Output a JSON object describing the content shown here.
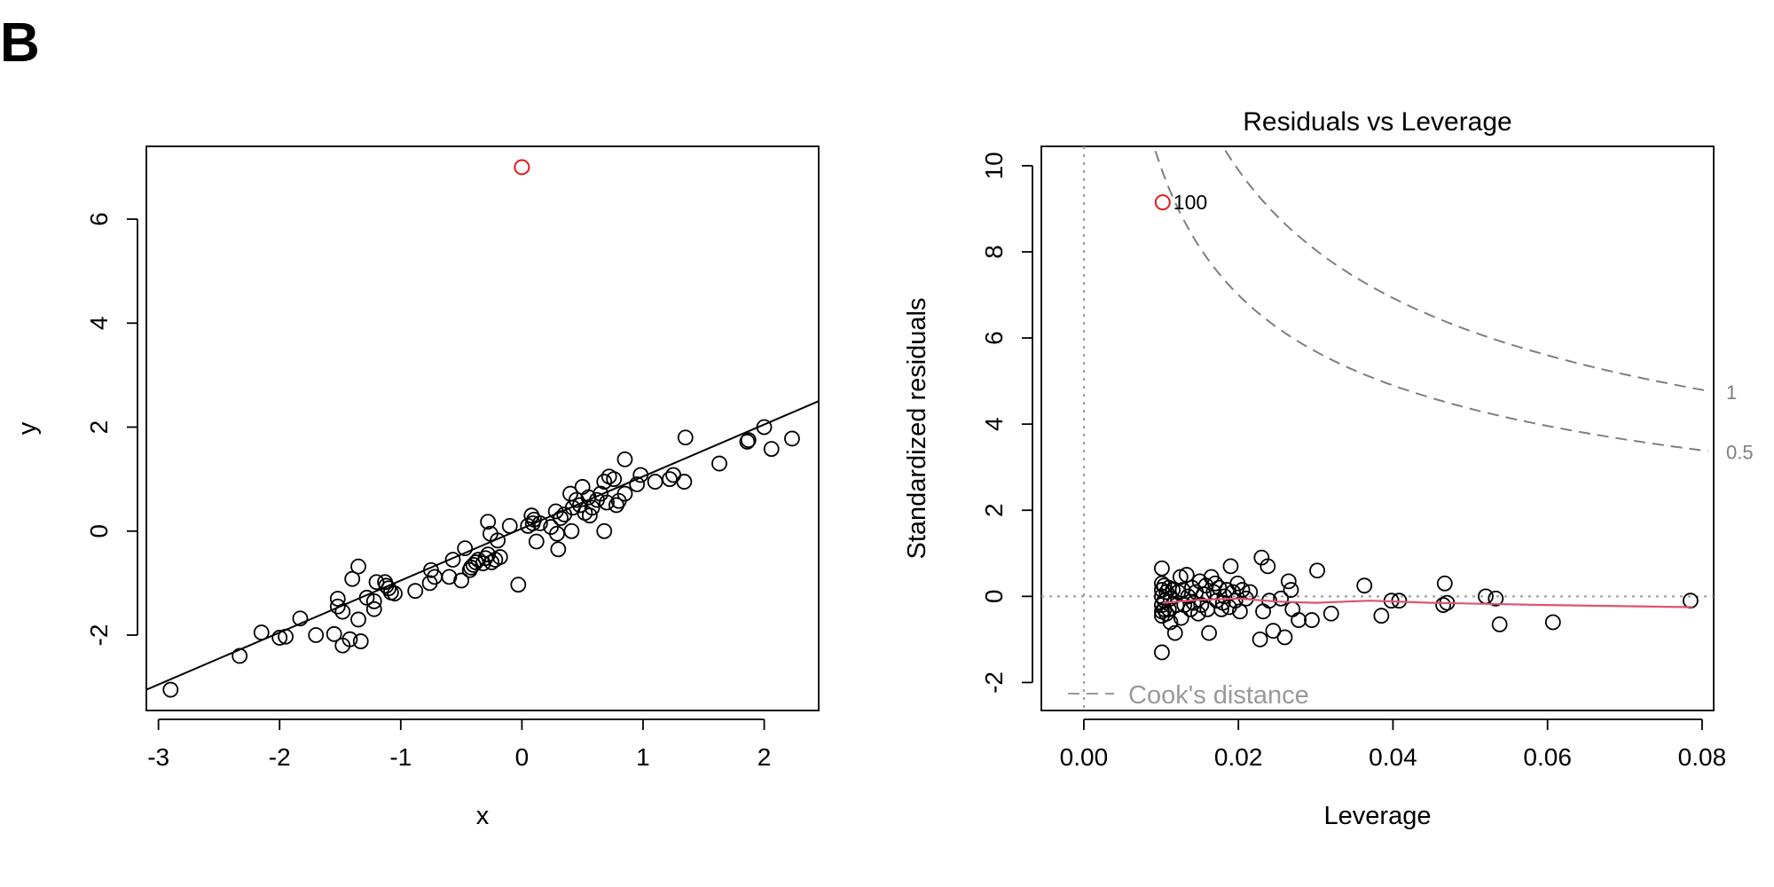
{
  "figure": {
    "panel_label": "B"
  },
  "chart_data": [
    {
      "type": "scatter",
      "title": "",
      "xlabel": "x",
      "ylabel": "y",
      "xlim": [
        -3.1,
        2.45
      ],
      "ylim": [
        -3.45,
        7.4
      ],
      "xticks": [
        -3,
        -2,
        -1,
        0,
        1,
        2
      ],
      "yticks": [
        -2,
        0,
        2,
        4,
        6
      ],
      "xtick_labels": [
        "-3",
        "-2",
        "-1",
        "0",
        "1",
        "2"
      ],
      "ytick_labels": [
        "-2",
        "0",
        "2",
        "4",
        "6"
      ],
      "grid": false,
      "point_color": "#000000",
      "outlier_color": "#e41a1c",
      "fit_line": {
        "intercept": 0.05,
        "slope": 1.0,
        "color": "#000000"
      },
      "outlier": {
        "x": 0.0,
        "y": 7.0
      },
      "points": [
        [
          -2.9,
          -3.05
        ],
        [
          -2.33,
          -2.4
        ],
        [
          -2.15,
          -1.95
        ],
        [
          -2.0,
          -2.05
        ],
        [
          -1.95,
          -2.03
        ],
        [
          -1.83,
          -1.68
        ],
        [
          -1.7,
          -2.0
        ],
        [
          -1.55,
          -1.98
        ],
        [
          -1.52,
          -1.3
        ],
        [
          -1.52,
          -1.45
        ],
        [
          -1.48,
          -2.2
        ],
        [
          -1.48,
          -1.55
        ],
        [
          -1.42,
          -2.08
        ],
        [
          -1.4,
          -0.92
        ],
        [
          -1.35,
          -1.7
        ],
        [
          -1.35,
          -0.68
        ],
        [
          -1.33,
          -2.12
        ],
        [
          -1.28,
          -1.28
        ],
        [
          -1.22,
          -1.5
        ],
        [
          -1.22,
          -1.35
        ],
        [
          -1.2,
          -0.98
        ],
        [
          -1.13,
          -0.98
        ],
        [
          -1.12,
          -1.05
        ],
        [
          -1.1,
          -1.1
        ],
        [
          -1.08,
          -1.18
        ],
        [
          -1.05,
          -1.2
        ],
        [
          -0.88,
          -1.15
        ],
        [
          -0.76,
          -1.0
        ],
        [
          -0.75,
          -0.75
        ],
        [
          -0.72,
          -0.88
        ],
        [
          -0.6,
          -0.88
        ],
        [
          -0.57,
          -0.55
        ],
        [
          -0.5,
          -0.95
        ],
        [
          -0.47,
          -0.33
        ],
        [
          -0.43,
          -0.75
        ],
        [
          -0.42,
          -0.7
        ],
        [
          -0.4,
          -0.65
        ],
        [
          -0.38,
          -0.6
        ],
        [
          -0.36,
          -0.55
        ],
        [
          -0.32,
          -0.62
        ],
        [
          -0.3,
          -0.52
        ],
        [
          -0.28,
          -0.45
        ],
        [
          -0.28,
          0.18
        ],
        [
          -0.26,
          -0.05
        ],
        [
          -0.25,
          -0.6
        ],
        [
          -0.22,
          -0.55
        ],
        [
          -0.2,
          -0.18
        ],
        [
          -0.18,
          -0.5
        ],
        [
          -0.1,
          0.1
        ],
        [
          -0.03,
          -1.03
        ],
        [
          0.05,
          0.1
        ],
        [
          0.08,
          0.3
        ],
        [
          0.09,
          0.15
        ],
        [
          0.1,
          0.22
        ],
        [
          0.12,
          -0.2
        ],
        [
          0.15,
          0.15
        ],
        [
          0.24,
          0.08
        ],
        [
          0.28,
          0.38
        ],
        [
          0.29,
          -0.05
        ],
        [
          0.3,
          -0.35
        ],
        [
          0.32,
          0.25
        ],
        [
          0.35,
          0.32
        ],
        [
          0.4,
          0.72
        ],
        [
          0.41,
          0.0
        ],
        [
          0.42,
          0.45
        ],
        [
          0.45,
          0.6
        ],
        [
          0.48,
          0.5
        ],
        [
          0.5,
          0.85
        ],
        [
          0.52,
          0.35
        ],
        [
          0.55,
          0.65
        ],
        [
          0.56,
          0.3
        ],
        [
          0.58,
          0.45
        ],
        [
          0.62,
          0.6
        ],
        [
          0.65,
          0.72
        ],
        [
          0.68,
          0.95
        ],
        [
          0.68,
          0.0
        ],
        [
          0.7,
          0.55
        ],
        [
          0.72,
          1.05
        ],
        [
          0.76,
          1.0
        ],
        [
          0.78,
          0.5
        ],
        [
          0.8,
          0.58
        ],
        [
          0.85,
          0.72
        ],
        [
          0.85,
          1.38
        ],
        [
          0.95,
          0.9
        ],
        [
          0.98,
          1.08
        ],
        [
          1.1,
          0.95
        ],
        [
          1.22,
          1.0
        ],
        [
          1.25,
          1.08
        ],
        [
          1.34,
          0.95
        ],
        [
          1.35,
          1.8
        ],
        [
          1.63,
          1.3
        ],
        [
          1.86,
          1.72
        ],
        [
          1.87,
          1.75
        ],
        [
          2.0,
          2.0
        ],
        [
          2.06,
          1.58
        ],
        [
          2.23,
          1.78
        ]
      ]
    },
    {
      "type": "scatter",
      "title": "Residuals vs Leverage",
      "xlabel": "Leverage",
      "ylabel": "Standardized residuals",
      "xlim": [
        -0.0055,
        0.0815
      ],
      "ylim": [
        -2.65,
        10.45
      ],
      "xticks": [
        0.0,
        0.02,
        0.04,
        0.06,
        0.08
      ],
      "yticks": [
        -2,
        0,
        2,
        4,
        6,
        8,
        10
      ],
      "xtick_labels": [
        "0.00",
        "0.02",
        "0.04",
        "0.06",
        "0.08"
      ],
      "ytick_labels": [
        "-2",
        "0",
        "2",
        "4",
        "6",
        "8",
        "10"
      ],
      "grid": false,
      "point_color": "#000000",
      "outlier_color": "#e41a1c",
      "smooth_color": "#df536b",
      "reference_color": "#999999",
      "outlier": {
        "x": 0.0102,
        "y": 9.15,
        "label": "100"
      },
      "cooks_contours": [
        {
          "level": 0.5,
          "label": "0.5"
        },
        {
          "level": 1,
          "label": "1"
        }
      ],
      "cooks_legend": "Cook's distance",
      "smooth": [
        [
          0.0102,
          -0.15
        ],
        [
          0.015,
          -0.08
        ],
        [
          0.02,
          -0.05
        ],
        [
          0.025,
          -0.12
        ],
        [
          0.03,
          -0.15
        ],
        [
          0.037,
          -0.1
        ],
        [
          0.045,
          -0.15
        ],
        [
          0.06,
          -0.2
        ],
        [
          0.0788,
          -0.25
        ]
      ],
      "points": [
        [
          0.0101,
          0.65
        ],
        [
          0.0101,
          0.3
        ],
        [
          0.0101,
          0.15
        ],
        [
          0.0101,
          0.0
        ],
        [
          0.0101,
          -0.2
        ],
        [
          0.0101,
          -0.35
        ],
        [
          0.0101,
          -0.45
        ],
        [
          0.0101,
          -1.3
        ],
        [
          0.0104,
          0.25
        ],
        [
          0.0104,
          -0.1
        ],
        [
          0.0104,
          -0.3
        ],
        [
          0.0107,
          0.1
        ],
        [
          0.0107,
          -0.4
        ],
        [
          0.011,
          0.2
        ],
        [
          0.011,
          -0.3
        ],
        [
          0.0112,
          -0.05
        ],
        [
          0.0112,
          -0.6
        ],
        [
          0.0115,
          0.15
        ],
        [
          0.0118,
          -0.85
        ],
        [
          0.012,
          -0.2
        ],
        [
          0.0122,
          0.1
        ],
        [
          0.0125,
          0.45
        ],
        [
          0.0126,
          -0.5
        ],
        [
          0.0128,
          0.15
        ],
        [
          0.013,
          -0.2
        ],
        [
          0.0133,
          0.5
        ],
        [
          0.0135,
          0.0
        ],
        [
          0.0138,
          -0.3
        ],
        [
          0.014,
          0.2
        ],
        [
          0.0142,
          -0.15
        ],
        [
          0.0145,
          0.1
        ],
        [
          0.0148,
          -0.4
        ],
        [
          0.015,
          0.35
        ],
        [
          0.0152,
          -0.2
        ],
        [
          0.0155,
          0.05
        ],
        [
          0.0158,
          0.25
        ],
        [
          0.016,
          -0.3
        ],
        [
          0.0162,
          -0.85
        ],
        [
          0.0165,
          0.45
        ],
        [
          0.0168,
          0.1
        ],
        [
          0.017,
          0.3
        ],
        [
          0.0172,
          -0.1
        ],
        [
          0.0175,
          0.2
        ],
        [
          0.0178,
          -0.3
        ],
        [
          0.018,
          -0.15
        ],
        [
          0.0182,
          0.0
        ],
        [
          0.0185,
          0.15
        ],
        [
          0.0188,
          -0.25
        ],
        [
          0.019,
          0.7
        ],
        [
          0.0193,
          0.1
        ],
        [
          0.0196,
          -0.1
        ],
        [
          0.0199,
          0.3
        ],
        [
          0.0202,
          -0.35
        ],
        [
          0.0205,
          0.15
        ],
        [
          0.021,
          -0.05
        ],
        [
          0.0215,
          0.1
        ],
        [
          0.0228,
          -1.0
        ],
        [
          0.023,
          0.9
        ],
        [
          0.0232,
          -0.35
        ],
        [
          0.0238,
          0.7
        ],
        [
          0.024,
          -0.1
        ],
        [
          0.0245,
          -0.8
        ],
        [
          0.0255,
          -0.05
        ],
        [
          0.026,
          -0.95
        ],
        [
          0.0265,
          0.35
        ],
        [
          0.0268,
          0.15
        ],
        [
          0.027,
          -0.3
        ],
        [
          0.0278,
          -0.55
        ],
        [
          0.0295,
          -0.55
        ],
        [
          0.0302,
          0.6
        ],
        [
          0.032,
          -0.4
        ],
        [
          0.0363,
          0.25
        ],
        [
          0.0385,
          -0.45
        ],
        [
          0.0398,
          -0.1
        ],
        [
          0.0408,
          -0.1
        ],
        [
          0.0465,
          -0.2
        ],
        [
          0.0467,
          0.3
        ],
        [
          0.047,
          -0.15
        ],
        [
          0.052,
          0.0
        ],
        [
          0.0533,
          -0.05
        ],
        [
          0.0538,
          -0.65
        ],
        [
          0.0607,
          -0.6
        ],
        [
          0.0785,
          -0.1
        ]
      ]
    }
  ]
}
